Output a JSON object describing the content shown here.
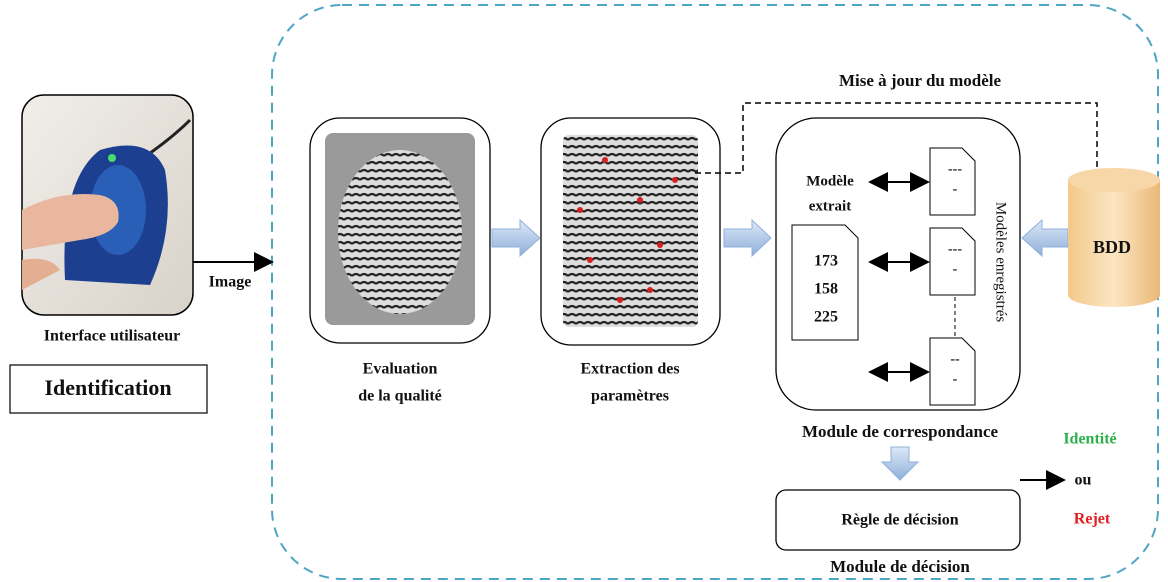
{
  "user_interface": {
    "label": "Interface utilisateur",
    "mode": "Identification",
    "arrow_label": "Image"
  },
  "quality": {
    "label_lines": [
      "Evaluation",
      "de la qualité"
    ]
  },
  "extraction": {
    "label_lines": [
      "Extraction des",
      "paramètres"
    ]
  },
  "update_label": "Mise à jour du modèle",
  "matching": {
    "extracted_label_lines": [
      "Modèle",
      "extrait"
    ],
    "extracted_values": [
      173,
      158,
      225
    ],
    "stored_label": "Modèles enregistrés",
    "stored_templates": [
      [
        "---",
        "-"
      ],
      [
        "---",
        "-"
      ],
      [
        "--",
        "-"
      ]
    ],
    "label": "Module de correspondance"
  },
  "database": {
    "label": "BDD"
  },
  "decision": {
    "rule": "Règle de décision",
    "label": "Module de décision"
  },
  "outcome": {
    "accept": "Identité",
    "or": "ou",
    "reject": "Rejet"
  }
}
